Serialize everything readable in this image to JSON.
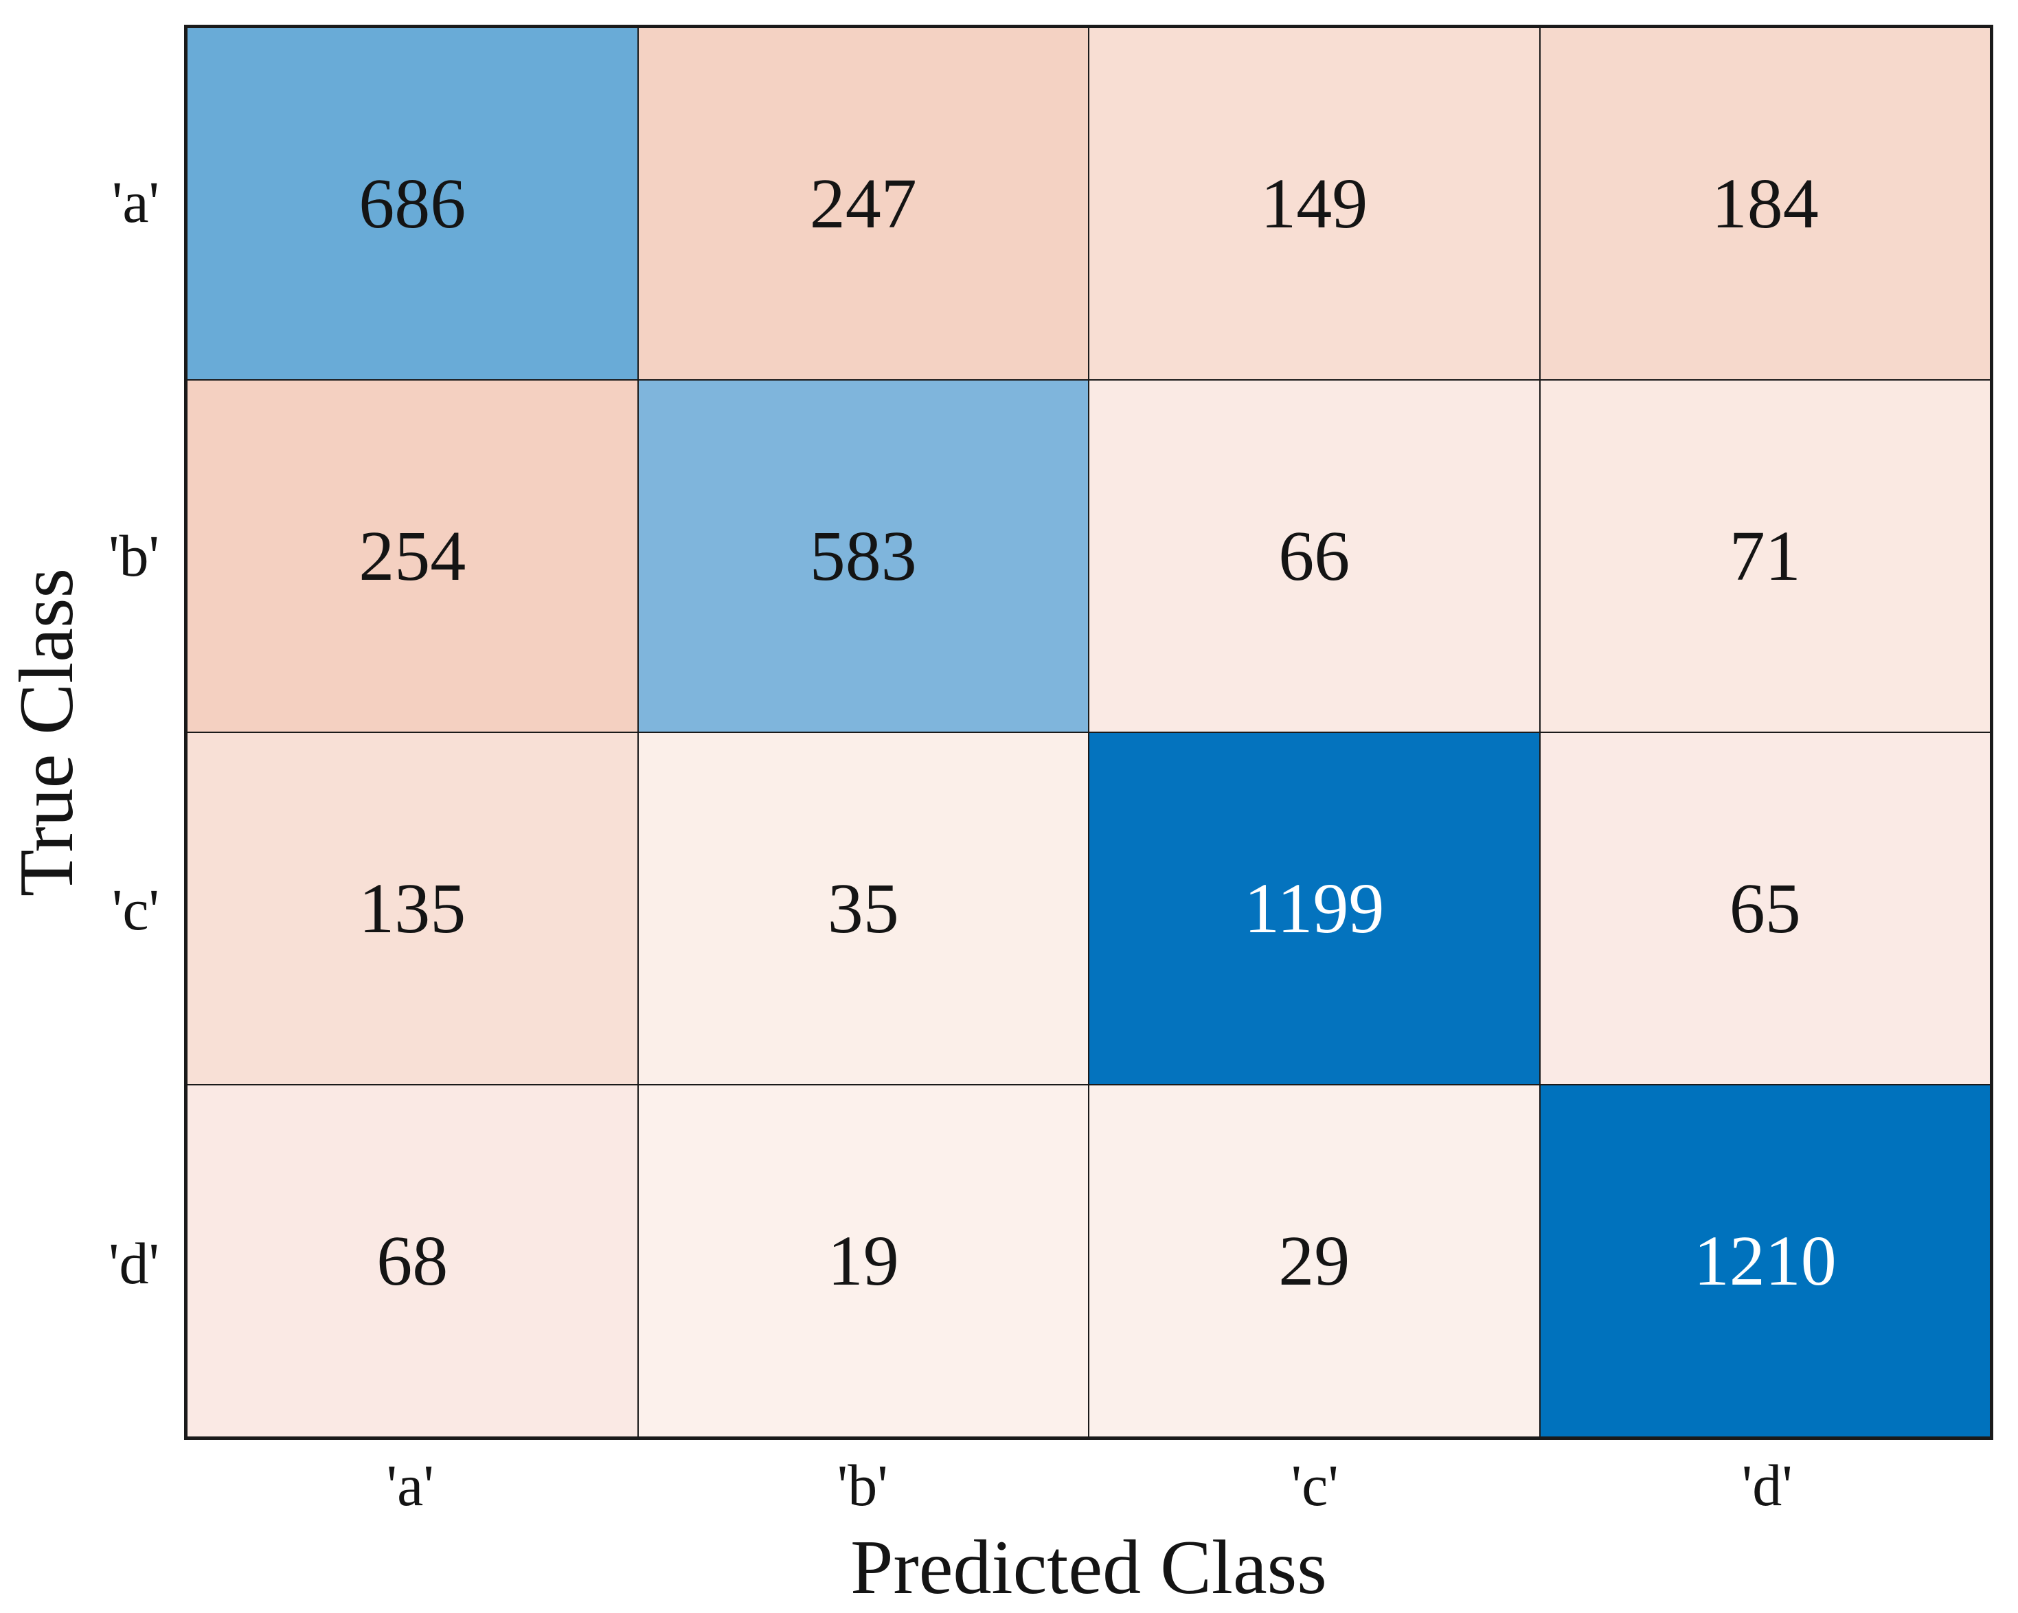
{
  "figure": {
    "background": "#ffffff",
    "gridline_color": "#1a1a1a",
    "text_color": "#141414"
  },
  "chart_data": {
    "type": "heatmap",
    "chart_kind": "confusion-matrix",
    "xlabel": "Predicted Class",
    "ylabel": "True Class",
    "x_tick_labels": [
      "'a'",
      "'b'",
      "'c'",
      "'d'"
    ],
    "y_tick_labels": [
      "'a'",
      "'b'",
      "'c'",
      "'d'"
    ],
    "classes": [
      "a",
      "b",
      "c",
      "d"
    ],
    "matrix": [
      [
        686,
        247,
        149,
        184
      ],
      [
        254,
        583,
        66,
        71
      ],
      [
        135,
        35,
        1199,
        65
      ],
      [
        68,
        19,
        29,
        1210
      ]
    ],
    "cell_colors": [
      [
        "#69ABD7",
        "#F4D2C3",
        "#F8DED3",
        "#F6D9CC"
      ],
      [
        "#F4D0C1",
        "#7FB5DC",
        "#FAEAE4",
        "#FAE9E2"
      ],
      [
        "#F8E0D6",
        "#FBEFE9",
        "#0473BE",
        "#FAEAE5"
      ],
      [
        "#FAE9E4",
        "#FCF1EC",
        "#FBF0EB",
        "#0072BD"
      ]
    ],
    "cell_text_colors": [
      [
        "#141414",
        "#141414",
        "#141414",
        "#141414"
      ],
      [
        "#141414",
        "#141414",
        "#141414",
        "#141414"
      ],
      [
        "#141414",
        "#141414",
        "#FFFFFF",
        "#141414"
      ],
      [
        "#141414",
        "#141414",
        "#141414",
        "#FFFFFF"
      ]
    ],
    "diagonal_color_max": "#0072BD",
    "off_diagonal_color_max": "#F4D0C1",
    "grid_lines": "on",
    "legend": "none"
  }
}
